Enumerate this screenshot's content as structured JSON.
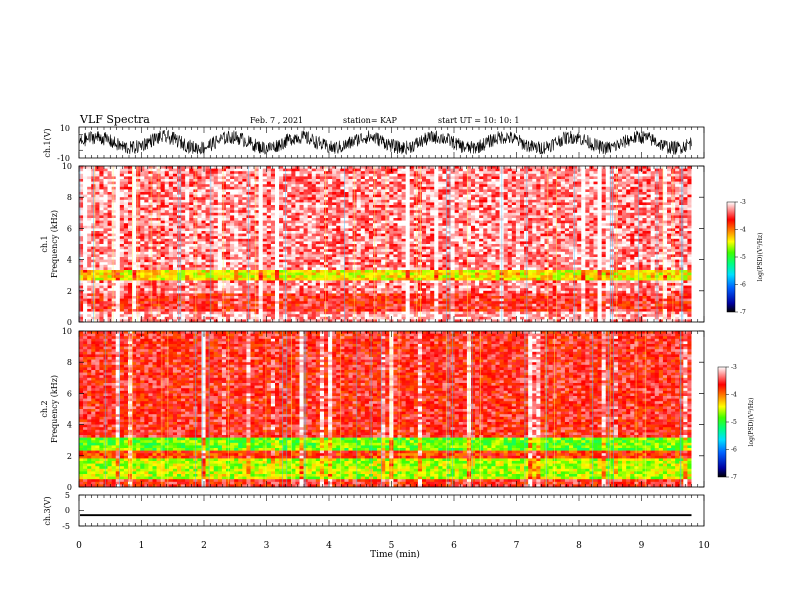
{
  "header": {
    "title": "VLF Spectra",
    "date": "Feb. 7 , 2021",
    "station": "station= KAP",
    "start_ut": "start UT =  10: 10: 1"
  },
  "chart_data": [
    {
      "type": "line",
      "panel": "ch1-waveform",
      "ylabel": "ch.1(V)",
      "ylim": [
        -10,
        10
      ],
      "yticks": [
        "10",
        "-10"
      ],
      "x_range_min": [
        0,
        9.8
      ],
      "description_values": {
        "oscillation_cycles": 9,
        "mean_V": 0
      }
    },
    {
      "type": "heatmap",
      "panel": "ch1-spectrogram",
      "ylabel": "ch.1",
      "ylabel2": "Frequency (kHz)",
      "ylim": [
        0,
        10
      ],
      "yticks": [
        "0",
        "2",
        "4",
        "6",
        "8",
        "10"
      ],
      "bands_khz": [
        {
          "from": 0,
          "to": 0.7,
          "level": -3.2
        },
        {
          "from": 0.7,
          "to": 1.9,
          "level": -3.6
        },
        {
          "from": 1.9,
          "to": 2.6,
          "level": -3.3
        },
        {
          "from": 2.6,
          "to": 3.4,
          "level": -4.4
        },
        {
          "from": 3.4,
          "to": 10,
          "level": -3.3
        }
      ],
      "colorbar": {
        "label": "log(PSD)(V²/Hz)",
        "ticks": [
          "-3",
          "-4",
          "-5",
          "-6",
          "-7"
        ],
        "range": [
          -7,
          -3
        ]
      }
    },
    {
      "type": "heatmap",
      "panel": "ch2-spectrogram",
      "ylabel": "ch.2",
      "ylabel2": "Frequency (kHz)",
      "ylim": [
        0,
        10
      ],
      "yticks": [
        "0",
        "2",
        "4",
        "6",
        "8",
        "10"
      ],
      "bands_khz": [
        {
          "from": 0,
          "to": 0.5,
          "level": -3.6
        },
        {
          "from": 0.5,
          "to": 1.9,
          "level": -4.6
        },
        {
          "from": 1.9,
          "to": 2.4,
          "level": -3.8
        },
        {
          "from": 2.4,
          "to": 3.2,
          "level": -4.8
        },
        {
          "from": 3.2,
          "to": 10,
          "level": -3.6
        }
      ],
      "colorbar": {
        "label": "log(PSD)(V²/Hz)",
        "ticks": [
          "-3",
          "-4",
          "-5",
          "-6",
          "-7"
        ],
        "range": [
          -7,
          -3
        ]
      }
    },
    {
      "type": "line",
      "panel": "ch3-waveform",
      "ylabel": "ch.3(V)",
      "ylim": [
        -5,
        5
      ],
      "yticks": [
        "5",
        "0",
        "-5"
      ],
      "description_values": {
        "mean_V": -1.5,
        "amplitude_V": 0.3
      }
    }
  ],
  "x_axis": {
    "label": "Time (min)",
    "ticks": [
      "0",
      "1",
      "2",
      "3",
      "4",
      "5",
      "6",
      "7",
      "8",
      "9",
      "10"
    ],
    "range": [
      0,
      10
    ],
    "data_end": 9.8
  },
  "colors": {
    "scale": [
      "#000080",
      "#0000ff",
      "#00bfff",
      "#00ffb0",
      "#00ff00",
      "#ffff00",
      "#ff8000",
      "#ff0000",
      "#ffffff"
    ]
  }
}
